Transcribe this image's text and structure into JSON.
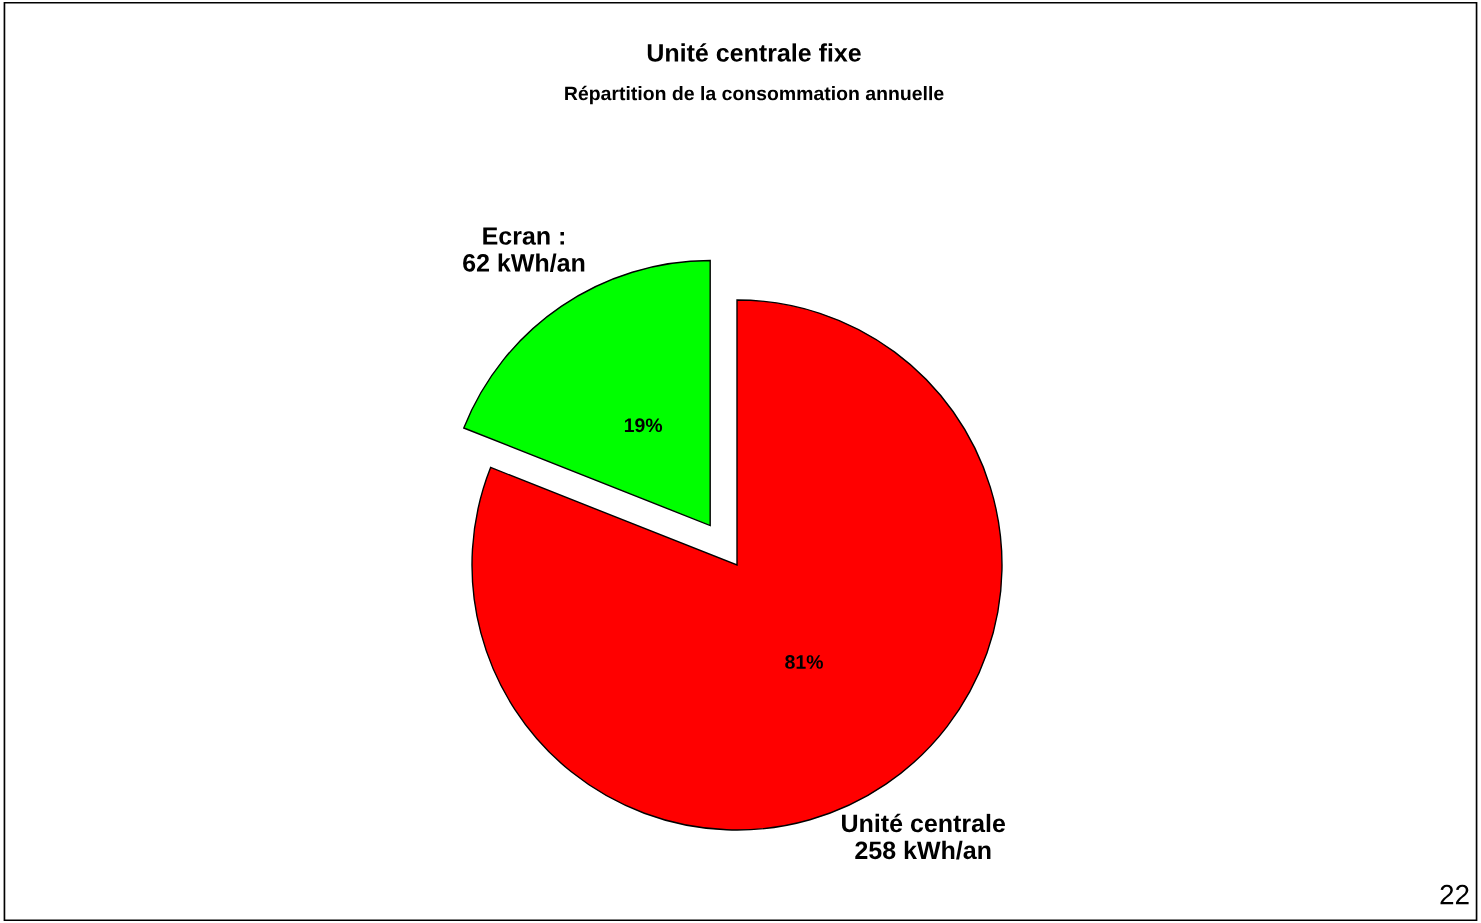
{
  "chart_data": {
    "type": "pie",
    "title": "Unité centrale fixe",
    "subtitle": "Répartition de la consommation annuelle",
    "categories": [
      "Ecran :\n62 kWh/an",
      "Unité centrale\n258 kWh/an"
    ],
    "values": [
      19,
      81
    ],
    "value_labels": [
      "19%",
      "81%"
    ],
    "colors": [
      "#00ff00",
      "#ff0000"
    ],
    "legend": false,
    "annotations": [
      "22"
    ]
  }
}
